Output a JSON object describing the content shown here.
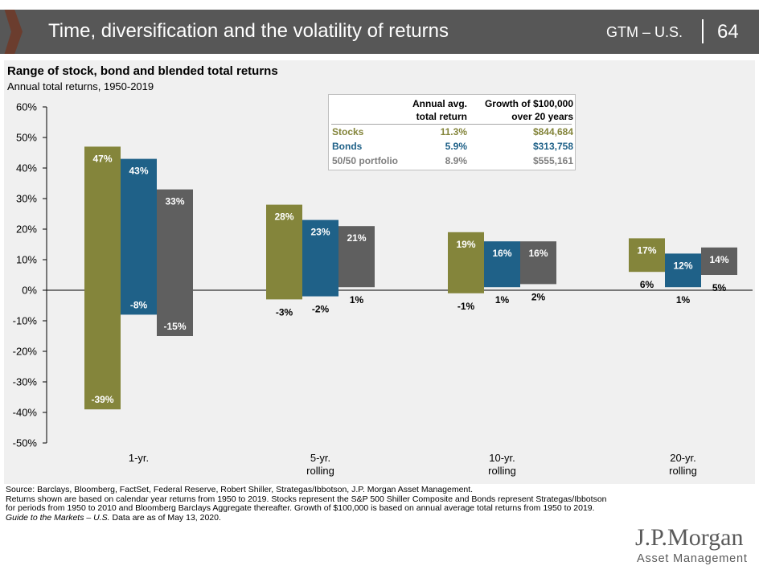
{
  "header": {
    "title": "Time, diversification and the volatility of returns",
    "region": "GTM – U.S.",
    "page": "64"
  },
  "chart": {
    "title": "Range of stock, bond and blended total returns",
    "subtitle": "Annual total returns, 1950-2019"
  },
  "colors": {
    "stocks": "#84853b",
    "bonds": "#1f6188",
    "portfolio": "#5f5f5f"
  },
  "chart_data": {
    "type": "bar",
    "subtype": "floating-range",
    "title": "Range of stock, bond and blended total returns",
    "subtitle": "Annual total returns, 1950-2019",
    "ylim": [
      -50,
      60
    ],
    "yticks": [
      "60%",
      "50%",
      "40%",
      "30%",
      "20%",
      "10%",
      "0%",
      "-10%",
      "-20%",
      "-30%",
      "-40%",
      "-50%"
    ],
    "ytick_values": [
      60,
      50,
      40,
      30,
      20,
      10,
      0,
      -10,
      -20,
      -30,
      -40,
      -50
    ],
    "categories": [
      "1-yr.",
      "5-yr. rolling",
      "10-yr. rolling",
      "20-yr. rolling"
    ],
    "category_lines": [
      [
        "1-yr."
      ],
      [
        "5-yr.",
        "rolling"
      ],
      [
        "10-yr.",
        "rolling"
      ],
      [
        "20-yr.",
        "rolling"
      ]
    ],
    "series": [
      {
        "name": "Stocks",
        "key": "stocks",
        "high": [
          47,
          28,
          19,
          17
        ],
        "low": [
          -39,
          -3,
          -1,
          6
        ],
        "high_labels": [
          "47%",
          "28%",
          "19%",
          "17%"
        ],
        "low_labels": [
          "-39%",
          "-3%",
          "-1%",
          "6%"
        ]
      },
      {
        "name": "Bonds",
        "key": "bonds",
        "high": [
          43,
          23,
          16,
          12
        ],
        "low": [
          -8,
          -2,
          1,
          1
        ],
        "high_labels": [
          "43%",
          "23%",
          "16%",
          "12%"
        ],
        "low_labels": [
          "-8%",
          "-2%",
          "1%",
          "1%"
        ]
      },
      {
        "name": "50/50 portfolio",
        "key": "portfolio",
        "high": [
          33,
          21,
          16,
          14
        ],
        "low": [
          -15,
          1,
          2,
          5
        ],
        "high_labels": [
          "33%",
          "21%",
          "16%",
          "14%"
        ],
        "low_labels": [
          "-15%",
          "1%",
          "2%",
          "5%"
        ]
      }
    ]
  },
  "table": {
    "header_col1_line1": "Annual avg.",
    "header_col1_line2": "total return",
    "header_col2_line1": "Growth of $100,000",
    "header_col2_line2": "over 20 years",
    "rows": [
      {
        "label": "Stocks",
        "avg": "11.3%",
        "growth": "$844,684"
      },
      {
        "label": "Bonds",
        "avg": "5.9%",
        "growth": "$313,758"
      },
      {
        "label": "50/50 portfolio",
        "avg": "8.9%",
        "growth": "$555,161"
      }
    ]
  },
  "footer": {
    "line1": "Source: Barclays, Bloomberg, FactSet, Federal Reserve, Robert Shiller, Strategas/Ibbotson, J.P. Morgan Asset Management.",
    "line2": "Returns shown are based on calendar year returns from 1950 to 2019. Stocks represent the S&P 500 Shiller Composite and Bonds represent Strategas/Ibbotson for periods from 1950 to 2010 and Bloomberg Barclays Aggregate thereafter. Growth of $100,000 is based on annual average total returns from 1950 to 2019.",
    "guide": "Guide to the Markets – U.S.",
    "date": " Data are as of May 13, 2020."
  },
  "logo": {
    "name": "J.P.Morgan",
    "sub": "Asset Management"
  }
}
